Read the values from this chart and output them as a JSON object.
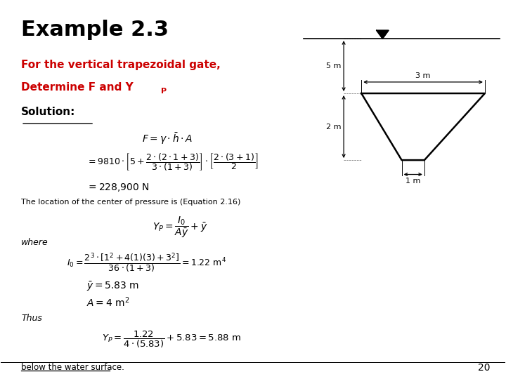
{
  "title": "Example 2.3",
  "title_fontsize": 22,
  "red_text_line1": "For the vertical trapezoidal gate,",
  "red_text_line2": "Determine F and Y",
  "red_text_sub": "P",
  "solution_label": "Solution:",
  "bg_color": "#ffffff",
  "text_color_red": "#cc0000",
  "text_color_black": "#000000",
  "page_number": "20",
  "bottom_text": "below the water surface."
}
